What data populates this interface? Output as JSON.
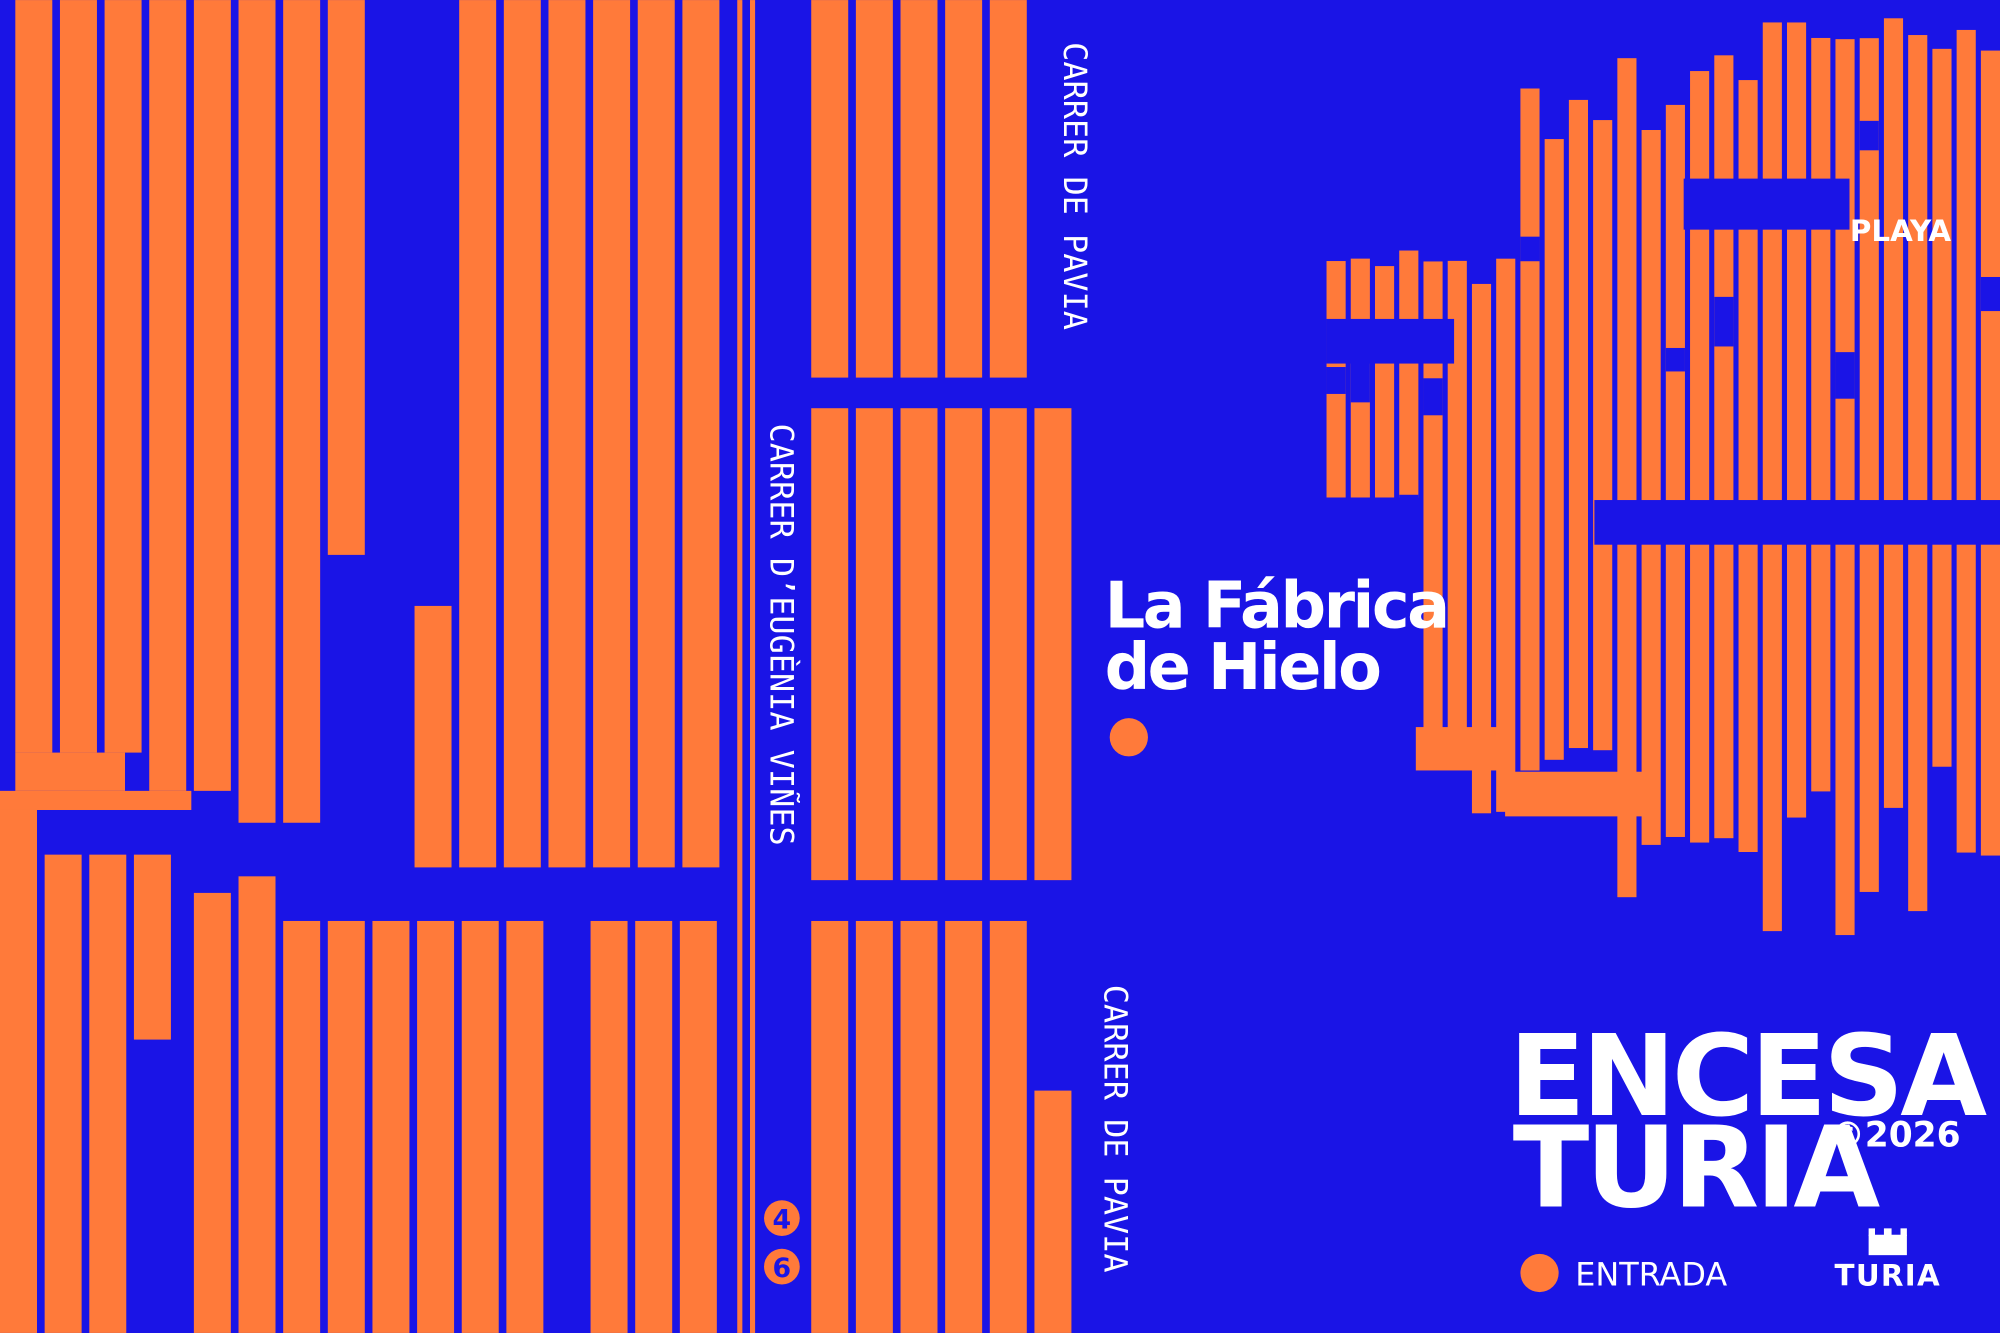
{
  "streets": {
    "top_right": "CARRER DE PAVIA",
    "center": "CARRER D’EUGÈNIA VIÑES",
    "bottom_right": "CARRER DE PAVIA"
  },
  "street_number": [
    "4",
    "6"
  ],
  "venue": {
    "line1": "La Fábrica",
    "line2": "de Hielo"
  },
  "area_label": "PLAYA",
  "brand": {
    "line1": "ENCESA",
    "line2": "TURIA",
    "year": "©2026"
  },
  "legend": {
    "entrance": "ENTRADA"
  },
  "logo": {
    "text": "TURIA"
  }
}
